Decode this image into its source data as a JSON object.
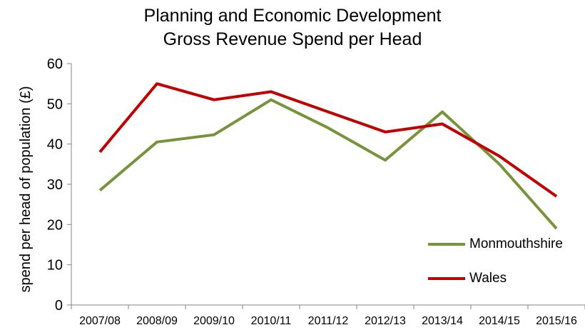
{
  "chart_data": {
    "type": "line",
    "title": "Planning and Economic Development",
    "subtitle": "Gross Revenue Spend per Head",
    "xlabel": "",
    "ylabel": "spend per head of population (£)",
    "categories": [
      "2007/08",
      "2008/09",
      "2009/10",
      "2010/11",
      "2011/12",
      "2012/13",
      "2013/14",
      "2014/15",
      "2015/16"
    ],
    "ylim": [
      0,
      60
    ],
    "yticks": [
      0,
      10,
      20,
      30,
      40,
      50,
      60
    ],
    "grid": false,
    "legend": "bottom-right",
    "series": [
      {
        "name": "Monmouthshire",
        "color": "#77933c",
        "values": [
          28.5,
          40.5,
          42.3,
          51,
          44,
          36,
          48,
          35,
          19
        ]
      },
      {
        "name": "Wales",
        "color": "#c00000",
        "values": [
          38,
          55,
          51,
          53,
          48,
          43,
          45,
          37,
          27
        ]
      }
    ]
  }
}
